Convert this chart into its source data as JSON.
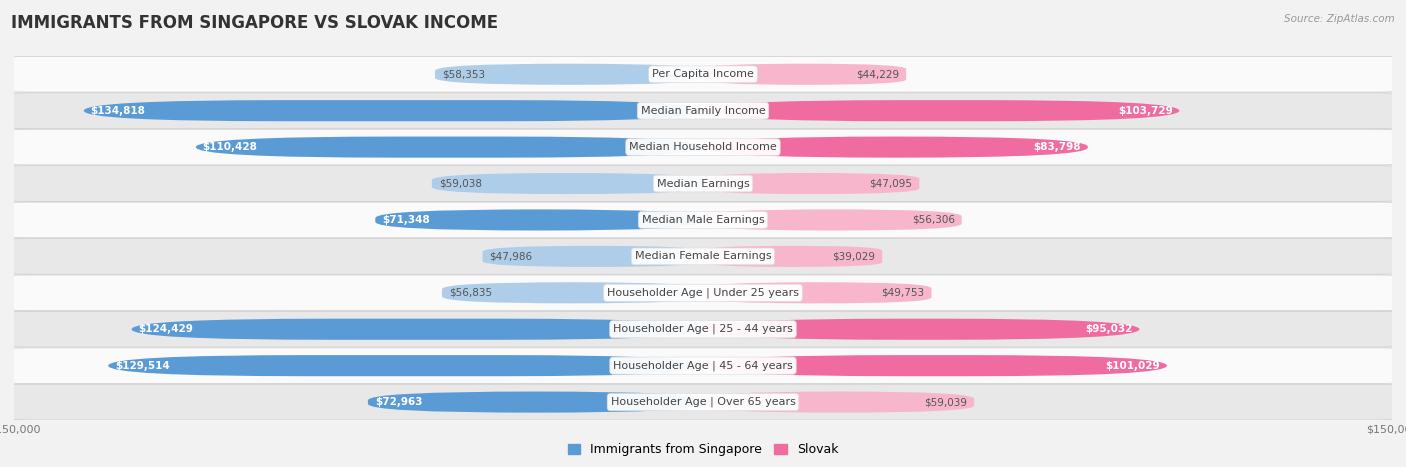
{
  "title": "IMMIGRANTS FROM SINGAPORE VS SLOVAK INCOME",
  "source": "Source: ZipAtlas.com",
  "categories": [
    "Per Capita Income",
    "Median Family Income",
    "Median Household Income",
    "Median Earnings",
    "Median Male Earnings",
    "Median Female Earnings",
    "Householder Age | Under 25 years",
    "Householder Age | 25 - 44 years",
    "Householder Age | 45 - 64 years",
    "Householder Age | Over 65 years"
  ],
  "singapore_values": [
    58353,
    134818,
    110428,
    59038,
    71348,
    47986,
    56835,
    124429,
    129514,
    72963
  ],
  "slovak_values": [
    44229,
    103729,
    83798,
    47095,
    56306,
    39029,
    49753,
    95032,
    101029,
    59039
  ],
  "singapore_color_light": "#aecde8",
  "singapore_color_dark": "#5b9bd5",
  "slovak_color_light": "#f7b6cc",
  "slovak_color_dark": "#f06ca0",
  "bar_height": 0.58,
  "max_value": 150000,
  "background_color": "#f2f2f2",
  "row_bg_color": "#fafafa",
  "row_alt_bg_color": "#e8e8e8",
  "title_fontsize": 12,
  "label_fontsize": 8,
  "value_fontsize": 7.5,
  "legend_fontsize": 9,
  "axis_label_fontsize": 8,
  "inside_threshold": 0.45
}
